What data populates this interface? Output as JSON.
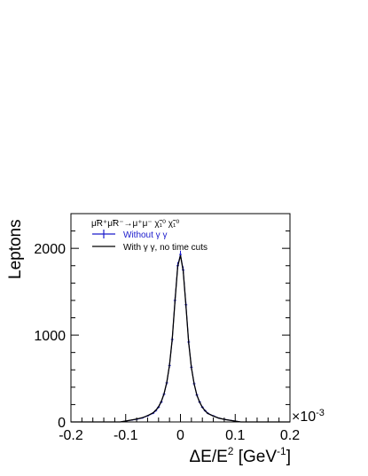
{
  "chart_data": {
    "type": "line",
    "xlabel": "ΔE/E",
    "xlabel_sup": "2",
    "xlabel_unit": " [GeV",
    "xlabel_unit_sup": "-1",
    "xlabel_close": "]",
    "ylabel": "Leptons",
    "xlim": [
      -0.2,
      0.2
    ],
    "ylim": [
      0,
      2400
    ],
    "x_scale_note": "×10",
    "x_scale_exp": "-3",
    "x_ticks": [
      -0.2,
      -0.1,
      0,
      0.1,
      0.2
    ],
    "x_tick_labels": [
      "-0.2",
      "-0.1",
      "0",
      "0.1",
      "0.2"
    ],
    "y_ticks": [
      0,
      1000,
      2000
    ],
    "y_tick_labels": [
      "0",
      "1000",
      "2000"
    ],
    "grid": false,
    "legend_position": "top-left",
    "process_label": "μ̃R⁺μ̃R⁻→μ⁺μ⁻ χ̃₁⁰ χ̃₁⁰",
    "series": [
      {
        "name": "Without γ γ",
        "color": "#1a1acc",
        "style": "error-bars",
        "x": [
          -0.09,
          -0.08,
          -0.07,
          -0.06,
          -0.05,
          -0.045,
          -0.04,
          -0.035,
          -0.03,
          -0.025,
          -0.02,
          -0.015,
          -0.01,
          -0.005,
          0,
          0.005,
          0.01,
          0.015,
          0.02,
          0.025,
          0.03,
          0.035,
          0.04,
          0.045,
          0.05,
          0.06,
          0.07,
          0.08,
          0.09
        ],
        "values": [
          20,
          30,
          45,
          70,
          100,
          130,
          170,
          230,
          320,
          450,
          650,
          950,
          1400,
          1800,
          1930,
          1750,
          1350,
          920,
          630,
          440,
          310,
          230,
          170,
          130,
          100,
          70,
          45,
          30,
          20
        ]
      },
      {
        "name": "With γ γ, no time cuts",
        "color": "#000000",
        "style": "line",
        "x": [
          -0.09,
          -0.08,
          -0.07,
          -0.06,
          -0.05,
          -0.045,
          -0.04,
          -0.035,
          -0.03,
          -0.025,
          -0.02,
          -0.015,
          -0.01,
          -0.005,
          0,
          0.005,
          0.01,
          0.015,
          0.02,
          0.025,
          0.03,
          0.035,
          0.04,
          0.045,
          0.05,
          0.06,
          0.07,
          0.08,
          0.09
        ],
        "values": [
          22,
          33,
          48,
          72,
          105,
          135,
          175,
          235,
          325,
          455,
          655,
          955,
          1390,
          1790,
          1920,
          1740,
          1340,
          915,
          625,
          438,
          308,
          228,
          168,
          128,
          98,
          68,
          44,
          29,
          19
        ]
      }
    ]
  }
}
